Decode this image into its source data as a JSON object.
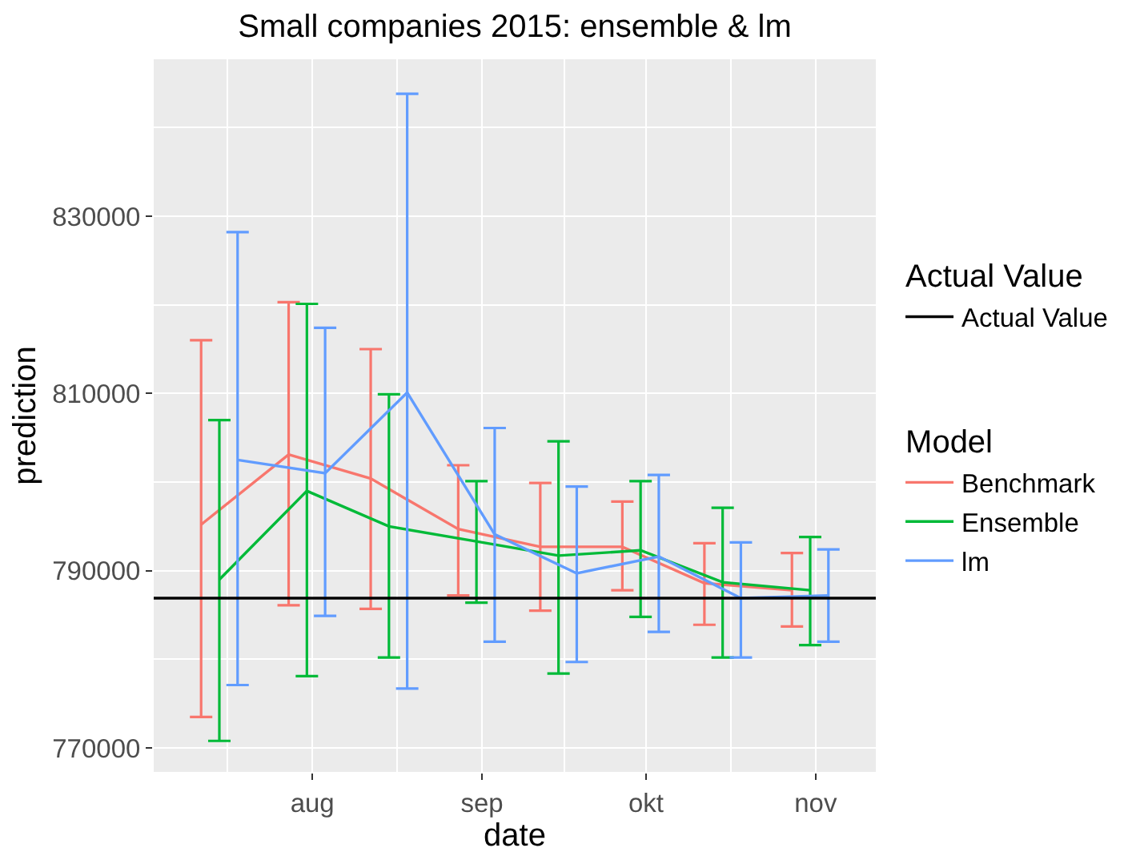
{
  "chart_data": {
    "type": "line",
    "title": "Small companies 2015: ensemble & lm",
    "xlabel": "date",
    "ylabel": "prediction",
    "legend_title": "Model",
    "annotations": [
      "Actual Value"
    ],
    "xlim": [
      "2015-07-03",
      "2015-11-12"
    ],
    "xticks": [
      {
        "value": "2015-08-01",
        "label": "aug"
      },
      {
        "value": "2015-09-01",
        "label": "sep"
      },
      {
        "value": "2015-10-01",
        "label": "okt"
      },
      {
        "value": "2015-11-01",
        "label": "nov"
      }
    ],
    "ylim": [
      767300,
      847700
    ],
    "yticks": [
      770000,
      790000,
      810000,
      830000
    ],
    "grid": true,
    "legend": "right",
    "ref_lines": [
      {
        "axis": "y",
        "value": 786900,
        "label": "Actual Value",
        "color": "#000000"
      }
    ],
    "series": [
      {
        "name": "Benchmark",
        "color": "#f8766d",
        "x": [
          "2015-07-11T16:00",
          "2015-07-27T16:00",
          "2015-08-11T16:00",
          "2015-08-27T16:00",
          "2015-09-11T16:00",
          "2015-09-26T16:00",
          "2015-10-11T16:00",
          "2015-10-27T16:00"
        ],
        "values": [
          795200,
          803100,
          800400,
          794700,
          792700,
          792700,
          788600,
          787800
        ],
        "errors": [
          [
            773500,
            816000
          ],
          [
            786100,
            820300
          ],
          [
            785700,
            815000
          ],
          [
            787200,
            801900
          ],
          [
            785500,
            799900
          ],
          [
            787800,
            797800
          ],
          [
            783900,
            793100
          ],
          [
            783700,
            792000
          ]
        ]
      },
      {
        "name": "Ensemble",
        "color": "#00ba38",
        "x": [
          "2015-07-15",
          "2015-07-31",
          "2015-08-15",
          "2015-08-31",
          "2015-09-15",
          "2015-09-30",
          "2015-10-15",
          "2015-10-31"
        ],
        "values": [
          789000,
          799000,
          795000,
          793300,
          791700,
          792300,
          788700,
          787800
        ],
        "errors": [
          [
            770800,
            807000
          ],
          [
            778100,
            820100
          ],
          [
            780200,
            809900
          ],
          [
            786400,
            800100
          ],
          [
            778400,
            804600
          ],
          [
            784800,
            800100
          ],
          [
            780200,
            797100
          ],
          [
            781600,
            793800
          ]
        ]
      },
      {
        "name": "lm",
        "color": "#619cff",
        "x": [
          "2015-07-18T08:00",
          "2015-08-03T08:00",
          "2015-08-18T08:00",
          "2015-09-03T08:00",
          "2015-09-18T08:00",
          "2015-10-03T08:00",
          "2015-10-18T08:00",
          "2015-11-03T08:00"
        ],
        "values": [
          802500,
          801000,
          810100,
          794100,
          789700,
          791600,
          786900,
          787200
        ],
        "errors": [
          [
            777100,
            828200
          ],
          [
            784900,
            817400
          ],
          [
            776700,
            843800
          ],
          [
            782000,
            806100
          ],
          [
            779700,
            799500
          ],
          [
            783100,
            800800
          ],
          [
            780200,
            793200
          ],
          [
            782000,
            792400
          ]
        ]
      }
    ]
  }
}
